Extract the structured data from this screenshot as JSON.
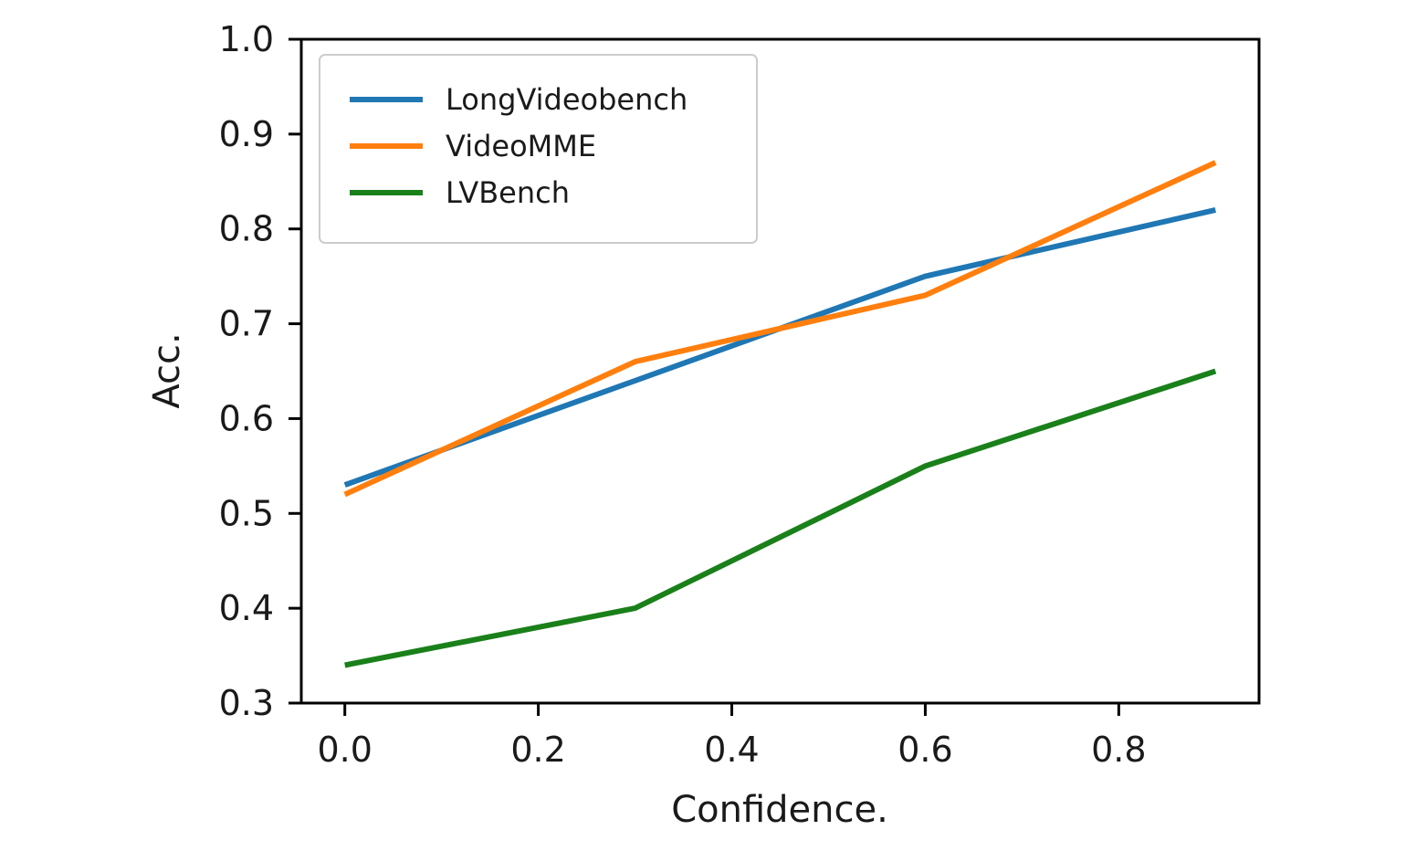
{
  "chart_data": {
    "type": "line",
    "title": "",
    "xlabel": "Confidence.",
    "ylabel": "Acc.",
    "xlim": [
      -0.045,
      0.945
    ],
    "ylim": [
      0.3,
      1.0
    ],
    "xticks": [
      0.0,
      0.2,
      0.4,
      0.6,
      0.8
    ],
    "xtick_labels": [
      "0.0",
      "0.2",
      "0.4",
      "0.6",
      "0.8"
    ],
    "yticks": [
      0.3,
      0.4,
      0.5,
      0.6,
      0.7,
      0.8,
      0.9,
      1.0
    ],
    "ytick_labels": [
      "0.3",
      "0.4",
      "0.5",
      "0.6",
      "0.7",
      "0.8",
      "0.9",
      "1.0"
    ],
    "grid": false,
    "legend_position": "upper-left",
    "x": [
      0.0,
      0.3,
      0.6,
      0.9
    ],
    "series": [
      {
        "name": "LongVideobench",
        "color": "#1f77b4",
        "values": [
          0.53,
          0.64,
          0.75,
          0.82
        ]
      },
      {
        "name": "VideoMME",
        "color": "#ff7f0e",
        "values": [
          0.52,
          0.66,
          0.73,
          0.87
        ]
      },
      {
        "name": "LVBench",
        "color": "#1a801a",
        "values": [
          0.34,
          0.4,
          0.55,
          0.65
        ]
      }
    ]
  }
}
